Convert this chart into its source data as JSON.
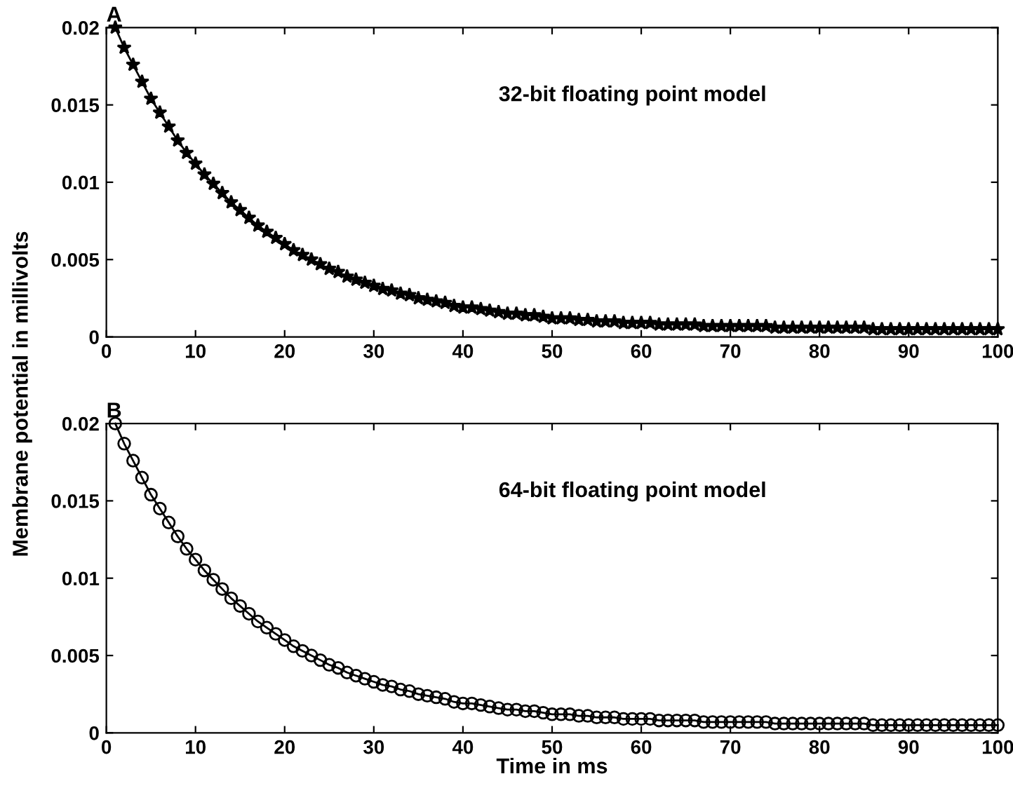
{
  "chart_data": [
    {
      "type": "line",
      "ylabel": "Membrane potential in millivolts",
      "annotations": [
        "A",
        "32-bit floating point model"
      ],
      "xlim": [
        0,
        100
      ],
      "ylim": [
        0,
        0.02
      ],
      "xticks": [
        0,
        10,
        20,
        30,
        40,
        50,
        60,
        70,
        80,
        90,
        100
      ],
      "yticks": [
        0,
        0.005,
        0.01,
        0.015,
        0.02
      ],
      "marker": "star",
      "line_style": "solid",
      "x": [
        1,
        2,
        3,
        4,
        5,
        6,
        7,
        8,
        9,
        10,
        11,
        12,
        13,
        14,
        15,
        16,
        17,
        18,
        19,
        20,
        21,
        22,
        23,
        24,
        25,
        26,
        27,
        28,
        29,
        30,
        31,
        32,
        33,
        34,
        35,
        36,
        37,
        38,
        39,
        40,
        41,
        42,
        43,
        44,
        45,
        46,
        47,
        48,
        49,
        50,
        51,
        52,
        53,
        54,
        55,
        56,
        57,
        58,
        59,
        60,
        61,
        62,
        63,
        64,
        65,
        66,
        67,
        68,
        69,
        70,
        71,
        72,
        73,
        74,
        75,
        76,
        77,
        78,
        79,
        80,
        81,
        82,
        83,
        84,
        85,
        86,
        87,
        88,
        89,
        90,
        91,
        92,
        93,
        94,
        95,
        96,
        97,
        98,
        99,
        100
      ],
      "series": [
        {
          "color": "#000000",
          "values": [
            0.02,
            0.0187,
            0.0176,
            0.0165,
            0.0154,
            0.0145,
            0.0136,
            0.0127,
            0.0119,
            0.0112,
            0.0105,
            0.0099,
            0.0093,
            0.0087,
            0.0082,
            0.0077,
            0.0072,
            0.0068,
            0.0064,
            0.006,
            0.0056,
            0.0053,
            0.005,
            0.0047,
            0.0044,
            0.0042,
            0.0039,
            0.0037,
            0.0035,
            0.0033,
            0.0031,
            0.003,
            0.0028,
            0.0027,
            0.0025,
            0.0024,
            0.0023,
            0.0022,
            0.002,
            0.0019,
            0.0019,
            0.0018,
            0.0017,
            0.0016,
            0.0015,
            0.0015,
            0.0014,
            0.0014,
            0.0013,
            0.0012,
            0.0012,
            0.0012,
            0.0011,
            0.0011,
            0.001,
            0.001,
            0.001,
            0.0009,
            0.0009,
            0.0009,
            0.0009,
            0.0008,
            0.0008,
            0.0008,
            0.0008,
            0.0008,
            0.0007,
            0.0007,
            0.0007,
            0.0007,
            0.0007,
            0.0007,
            0.0007,
            0.0007,
            0.0006,
            0.0006,
            0.0006,
            0.0006,
            0.0006,
            0.0006,
            0.0006,
            0.0006,
            0.0006,
            0.0006,
            0.0006,
            0.0005,
            0.0005,
            0.0005,
            0.0005,
            0.0005,
            0.0005,
            0.0005,
            0.0005,
            0.0005,
            0.0005,
            0.0005,
            0.0005,
            0.0005,
            0.0005,
            0.0005
          ]
        }
      ]
    },
    {
      "type": "line",
      "xlabel": "Time in ms",
      "annotations": [
        "B",
        "64-bit floating point model"
      ],
      "xlim": [
        0,
        100
      ],
      "ylim": [
        0,
        0.02
      ],
      "xticks": [
        0,
        10,
        20,
        30,
        40,
        50,
        60,
        70,
        80,
        90,
        100
      ],
      "yticks": [
        0,
        0.005,
        0.01,
        0.015,
        0.02
      ],
      "marker": "circle",
      "line_style": "solid",
      "x": [
        1,
        2,
        3,
        4,
        5,
        6,
        7,
        8,
        9,
        10,
        11,
        12,
        13,
        14,
        15,
        16,
        17,
        18,
        19,
        20,
        21,
        22,
        23,
        24,
        25,
        26,
        27,
        28,
        29,
        30,
        31,
        32,
        33,
        34,
        35,
        36,
        37,
        38,
        39,
        40,
        41,
        42,
        43,
        44,
        45,
        46,
        47,
        48,
        49,
        50,
        51,
        52,
        53,
        54,
        55,
        56,
        57,
        58,
        59,
        60,
        61,
        62,
        63,
        64,
        65,
        66,
        67,
        68,
        69,
        70,
        71,
        72,
        73,
        74,
        75,
        76,
        77,
        78,
        79,
        80,
        81,
        82,
        83,
        84,
        85,
        86,
        87,
        88,
        89,
        90,
        91,
        92,
        93,
        94,
        95,
        96,
        97,
        98,
        99,
        100
      ],
      "series": [
        {
          "color": "#000000",
          "values": [
            0.02,
            0.0187,
            0.0176,
            0.0165,
            0.0154,
            0.0145,
            0.0136,
            0.0127,
            0.0119,
            0.0112,
            0.0105,
            0.0099,
            0.0093,
            0.0087,
            0.0082,
            0.0077,
            0.0072,
            0.0068,
            0.0064,
            0.006,
            0.0056,
            0.0053,
            0.005,
            0.0047,
            0.0044,
            0.0042,
            0.0039,
            0.0037,
            0.0035,
            0.0033,
            0.0031,
            0.003,
            0.0028,
            0.0027,
            0.0025,
            0.0024,
            0.0023,
            0.0022,
            0.002,
            0.0019,
            0.0019,
            0.0018,
            0.0017,
            0.0016,
            0.0015,
            0.0015,
            0.0014,
            0.0014,
            0.0013,
            0.0012,
            0.0012,
            0.0012,
            0.0011,
            0.0011,
            0.001,
            0.001,
            0.001,
            0.0009,
            0.0009,
            0.0009,
            0.0009,
            0.0008,
            0.0008,
            0.0008,
            0.0008,
            0.0008,
            0.0007,
            0.0007,
            0.0007,
            0.0007,
            0.0007,
            0.0007,
            0.0007,
            0.0007,
            0.0006,
            0.0006,
            0.0006,
            0.0006,
            0.0006,
            0.0006,
            0.0006,
            0.0006,
            0.0006,
            0.0006,
            0.0006,
            0.0005,
            0.0005,
            0.0005,
            0.0005,
            0.0005,
            0.0005,
            0.0005,
            0.0005,
            0.0005,
            0.0005,
            0.0005,
            0.0005,
            0.0005,
            0.0005,
            0.0005
          ]
        }
      ]
    }
  ]
}
